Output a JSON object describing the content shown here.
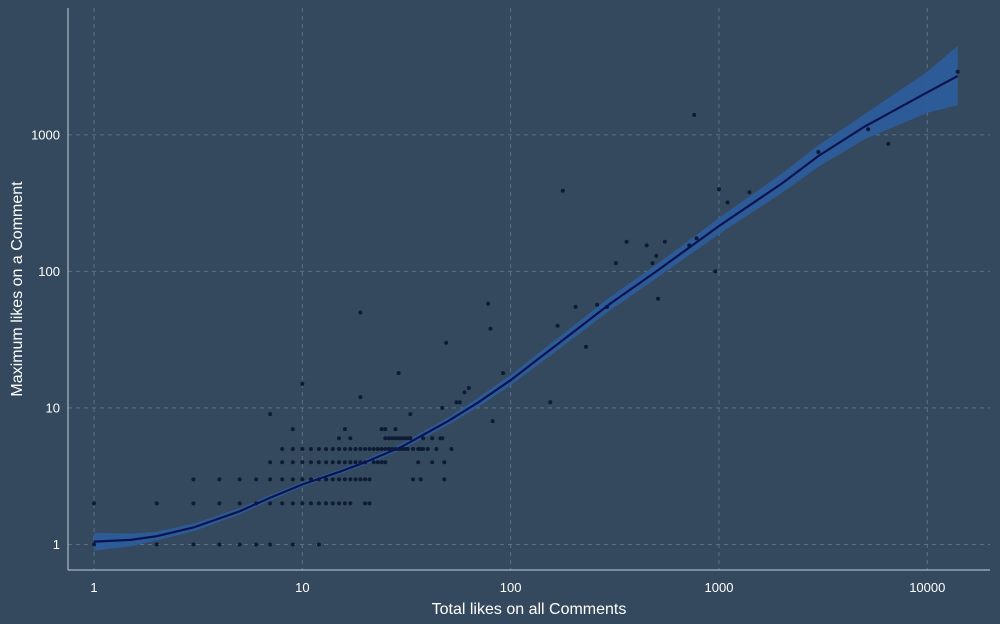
{
  "chart_data": {
    "type": "scatter",
    "title": "",
    "xlabel": "Total likes on all Comments",
    "ylabel": "Maximum likes on a Comment",
    "x_scale": "log10",
    "y_scale": "log10",
    "xlim": [
      0.75,
      20000
    ],
    "ylim": [
      0.65,
      8500
    ],
    "x_ticks": [
      1,
      10,
      100,
      1000,
      10000
    ],
    "x_tick_labels": [
      "1",
      "10",
      "100",
      "1000",
      "10000"
    ],
    "y_ticks": [
      1,
      10,
      100,
      1000
    ],
    "y_tick_labels": [
      "1",
      "10",
      "100",
      "1000"
    ],
    "grid": true,
    "legend": "none",
    "colors": {
      "background": "#34495e",
      "points": "#0d1b35",
      "trend_line": "#0b1450",
      "confidence_band": "#2d5d9a",
      "grid": "#5a7088",
      "axis": "#c6ced6",
      "text": "#ffffff"
    },
    "points": [
      {
        "x": 1,
        "y": 1
      },
      {
        "x": 1,
        "y": 2
      },
      {
        "x": 2,
        "y": 1
      },
      {
        "x": 2,
        "y": 2
      },
      {
        "x": 3,
        "y": 1
      },
      {
        "x": 3,
        "y": 2
      },
      {
        "x": 3,
        "y": 3
      },
      {
        "x": 4,
        "y": 1
      },
      {
        "x": 4,
        "y": 2
      },
      {
        "x": 4,
        "y": 3
      },
      {
        "x": 5,
        "y": 1
      },
      {
        "x": 5,
        "y": 2
      },
      {
        "x": 5,
        "y": 3
      },
      {
        "x": 6,
        "y": 1
      },
      {
        "x": 6,
        "y": 2
      },
      {
        "x": 6,
        "y": 3
      },
      {
        "x": 7,
        "y": 1
      },
      {
        "x": 7,
        "y": 2
      },
      {
        "x": 7,
        "y": 3
      },
      {
        "x": 7,
        "y": 4
      },
      {
        "x": 7,
        "y": 9
      },
      {
        "x": 8,
        "y": 2
      },
      {
        "x": 8,
        "y": 3
      },
      {
        "x": 8,
        "y": 4
      },
      {
        "x": 8,
        "y": 5
      },
      {
        "x": 9,
        "y": 1
      },
      {
        "x": 9,
        "y": 2
      },
      {
        "x": 9,
        "y": 3
      },
      {
        "x": 9,
        "y": 4
      },
      {
        "x": 9,
        "y": 5
      },
      {
        "x": 9,
        "y": 7
      },
      {
        "x": 10,
        "y": 2
      },
      {
        "x": 10,
        "y": 3
      },
      {
        "x": 10,
        "y": 4
      },
      {
        "x": 10,
        "y": 5
      },
      {
        "x": 10,
        "y": 15
      },
      {
        "x": 11,
        "y": 2
      },
      {
        "x": 11,
        "y": 3
      },
      {
        "x": 11,
        "y": 4
      },
      {
        "x": 11,
        "y": 5
      },
      {
        "x": 12,
        "y": 1
      },
      {
        "x": 12,
        "y": 2
      },
      {
        "x": 12,
        "y": 3
      },
      {
        "x": 12,
        "y": 4
      },
      {
        "x": 12,
        "y": 5
      },
      {
        "x": 13,
        "y": 2
      },
      {
        "x": 13,
        "y": 3
      },
      {
        "x": 13,
        "y": 4
      },
      {
        "x": 13,
        "y": 5
      },
      {
        "x": 14,
        "y": 2
      },
      {
        "x": 14,
        "y": 3
      },
      {
        "x": 14,
        "y": 4
      },
      {
        "x": 14,
        "y": 5
      },
      {
        "x": 15,
        "y": 2
      },
      {
        "x": 15,
        "y": 3
      },
      {
        "x": 15,
        "y": 4
      },
      {
        "x": 15,
        "y": 5
      },
      {
        "x": 15,
        "y": 6
      },
      {
        "x": 16,
        "y": 2
      },
      {
        "x": 16,
        "y": 3
      },
      {
        "x": 16,
        "y": 4
      },
      {
        "x": 16,
        "y": 5
      },
      {
        "x": 16,
        "y": 7
      },
      {
        "x": 17,
        "y": 2
      },
      {
        "x": 17,
        "y": 3
      },
      {
        "x": 17,
        "y": 4
      },
      {
        "x": 17,
        "y": 5
      },
      {
        "x": 17,
        "y": 6
      },
      {
        "x": 18,
        "y": 3
      },
      {
        "x": 18,
        "y": 4
      },
      {
        "x": 18,
        "y": 5
      },
      {
        "x": 19,
        "y": 3
      },
      {
        "x": 19,
        "y": 4
      },
      {
        "x": 19,
        "y": 5
      },
      {
        "x": 19,
        "y": 12
      },
      {
        "x": 19,
        "y": 50
      },
      {
        "x": 20,
        "y": 2
      },
      {
        "x": 20,
        "y": 3
      },
      {
        "x": 20,
        "y": 4
      },
      {
        "x": 20,
        "y": 5
      },
      {
        "x": 21,
        "y": 2
      },
      {
        "x": 21,
        "y": 3
      },
      {
        "x": 21,
        "y": 5
      },
      {
        "x": 22,
        "y": 4
      },
      {
        "x": 22,
        "y": 5
      },
      {
        "x": 23,
        "y": 4
      },
      {
        "x": 23,
        "y": 5
      },
      {
        "x": 24,
        "y": 4
      },
      {
        "x": 24,
        "y": 5
      },
      {
        "x": 24,
        "y": 7
      },
      {
        "x": 25,
        "y": 4
      },
      {
        "x": 25,
        "y": 5
      },
      {
        "x": 25,
        "y": 6
      },
      {
        "x": 25,
        "y": 7
      },
      {
        "x": 26,
        "y": 5
      },
      {
        "x": 26,
        "y": 6
      },
      {
        "x": 27,
        "y": 5
      },
      {
        "x": 27,
        "y": 6
      },
      {
        "x": 28,
        "y": 5
      },
      {
        "x": 28,
        "y": 6
      },
      {
        "x": 28,
        "y": 7
      },
      {
        "x": 29,
        "y": 5
      },
      {
        "x": 29,
        "y": 6
      },
      {
        "x": 29,
        "y": 18
      },
      {
        "x": 30,
        "y": 5
      },
      {
        "x": 30,
        "y": 6
      },
      {
        "x": 31,
        "y": 5
      },
      {
        "x": 31,
        "y": 6
      },
      {
        "x": 32,
        "y": 5
      },
      {
        "x": 32,
        "y": 6
      },
      {
        "x": 33,
        "y": 6
      },
      {
        "x": 33,
        "y": 9
      },
      {
        "x": 34,
        "y": 3
      },
      {
        "x": 34,
        "y": 5
      },
      {
        "x": 36,
        "y": 4
      },
      {
        "x": 36,
        "y": 5
      },
      {
        "x": 37,
        "y": 3
      },
      {
        "x": 37,
        "y": 5
      },
      {
        "x": 38,
        "y": 5
      },
      {
        "x": 38,
        "y": 6
      },
      {
        "x": 40,
        "y": 5
      },
      {
        "x": 42,
        "y": 4
      },
      {
        "x": 42,
        "y": 6
      },
      {
        "x": 44,
        "y": 5
      },
      {
        "x": 46,
        "y": 6
      },
      {
        "x": 47,
        "y": 6
      },
      {
        "x": 47,
        "y": 10
      },
      {
        "x": 48,
        "y": 3
      },
      {
        "x": 48,
        "y": 4
      },
      {
        "x": 49,
        "y": 30
      },
      {
        "x": 52,
        "y": 5
      },
      {
        "x": 55,
        "y": 11
      },
      {
        "x": 57,
        "y": 11
      },
      {
        "x": 60,
        "y": 13
      },
      {
        "x": 63,
        "y": 14
      },
      {
        "x": 78,
        "y": 58
      },
      {
        "x": 80,
        "y": 38
      },
      {
        "x": 82,
        "y": 8
      },
      {
        "x": 92,
        "y": 18
      },
      {
        "x": 155,
        "y": 11
      },
      {
        "x": 168,
        "y": 40
      },
      {
        "x": 178,
        "y": 390
      },
      {
        "x": 205,
        "y": 55
      },
      {
        "x": 230,
        "y": 28
      },
      {
        "x": 260,
        "y": 57
      },
      {
        "x": 290,
        "y": 55
      },
      {
        "x": 320,
        "y": 115
      },
      {
        "x": 360,
        "y": 165
      },
      {
        "x": 450,
        "y": 155
      },
      {
        "x": 480,
        "y": 115
      },
      {
        "x": 500,
        "y": 130
      },
      {
        "x": 510,
        "y": 63
      },
      {
        "x": 550,
        "y": 165
      },
      {
        "x": 720,
        "y": 155
      },
      {
        "x": 760,
        "y": 1400
      },
      {
        "x": 780,
        "y": 175
      },
      {
        "x": 960,
        "y": 100
      },
      {
        "x": 1000,
        "y": 400
      },
      {
        "x": 1100,
        "y": 320
      },
      {
        "x": 1400,
        "y": 380
      },
      {
        "x": 3000,
        "y": 750
      },
      {
        "x": 5200,
        "y": 1100
      },
      {
        "x": 6500,
        "y": 860
      },
      {
        "x": 14000,
        "y": 2900
      }
    ],
    "trend": [
      {
        "x": 1,
        "y": 1.05,
        "lo": 0.9,
        "hi": 1.22
      },
      {
        "x": 1.5,
        "y": 1.08,
        "lo": 0.97,
        "hi": 1.2
      },
      {
        "x": 2,
        "y": 1.15,
        "lo": 1.07,
        "hi": 1.24
      },
      {
        "x": 3,
        "y": 1.33,
        "lo": 1.25,
        "hi": 1.42
      },
      {
        "x": 5,
        "y": 1.75,
        "lo": 1.66,
        "hi": 1.84
      },
      {
        "x": 7,
        "y": 2.2,
        "lo": 2.1,
        "hi": 2.3
      },
      {
        "x": 10,
        "y": 2.75,
        "lo": 2.64,
        "hi": 2.86
      },
      {
        "x": 15,
        "y": 3.4,
        "lo": 3.27,
        "hi": 3.53
      },
      {
        "x": 20,
        "y": 4.0,
        "lo": 3.84,
        "hi": 4.17
      },
      {
        "x": 30,
        "y": 5.2,
        "lo": 4.95,
        "hi": 5.46
      },
      {
        "x": 50,
        "y": 8.0,
        "lo": 7.5,
        "hi": 8.5
      },
      {
        "x": 70,
        "y": 11.0,
        "lo": 10.2,
        "hi": 11.9
      },
      {
        "x": 100,
        "y": 16.0,
        "lo": 14.7,
        "hi": 17.4
      },
      {
        "x": 200,
        "y": 36,
        "lo": 32.5,
        "hi": 39.9
      },
      {
        "x": 300,
        "y": 58,
        "lo": 52,
        "hi": 65
      },
      {
        "x": 500,
        "y": 100,
        "lo": 89,
        "hi": 112
      },
      {
        "x": 1000,
        "y": 215,
        "lo": 188,
        "hi": 246
      },
      {
        "x": 2000,
        "y": 440,
        "lo": 375,
        "hi": 520
      },
      {
        "x": 3000,
        "y": 700,
        "lo": 585,
        "hi": 840
      },
      {
        "x": 5000,
        "y": 1150,
        "lo": 930,
        "hi": 1420
      },
      {
        "x": 10000,
        "y": 2050,
        "lo": 1450,
        "hi": 2900
      },
      {
        "x": 14000,
        "y": 2700,
        "lo": 1650,
        "hi": 4500
      }
    ]
  }
}
